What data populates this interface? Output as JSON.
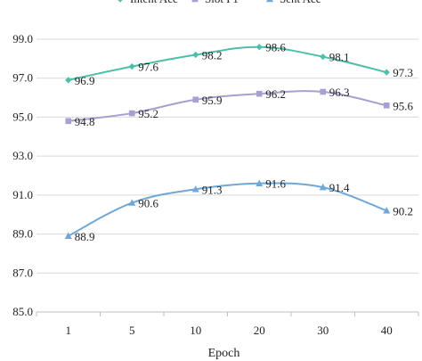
{
  "chart_data": {
    "type": "line",
    "xlabel": "Epoch",
    "ylabel": "",
    "ylim": [
      85.0,
      99.0
    ],
    "yticks": [
      "85.0",
      "87.0",
      "89.0",
      "91.0",
      "93.0",
      "95.0",
      "97.0",
      "99.0"
    ],
    "categories": [
      "1",
      "5",
      "10",
      "20",
      "30",
      "40"
    ],
    "grid": "horizontal",
    "legend_position": "top",
    "series": [
      {
        "name": "Intent Acc",
        "color": "#4dbfa9",
        "marker": "diamond",
        "values": [
          96.9,
          97.6,
          98.2,
          98.6,
          98.1,
          97.3
        ],
        "labels": [
          "96.9",
          "97.6",
          "98.2",
          "98.6",
          "98.1",
          "97.3"
        ]
      },
      {
        "name": "Slot F1",
        "color": "#a99fd0",
        "marker": "square",
        "values": [
          94.8,
          95.2,
          95.9,
          96.2,
          96.3,
          95.6
        ],
        "labels": [
          "94.8",
          "95.2",
          "95.9",
          "96.2",
          "96.3",
          "95.6"
        ]
      },
      {
        "name": "Sent Acc",
        "color": "#6fa8d6",
        "marker": "triangle",
        "values": [
          88.9,
          90.6,
          91.3,
          91.6,
          91.4,
          90.2
        ],
        "labels": [
          "88.9",
          "90.6",
          "91.3",
          "91.6",
          "91.4",
          "90.2"
        ]
      }
    ]
  }
}
